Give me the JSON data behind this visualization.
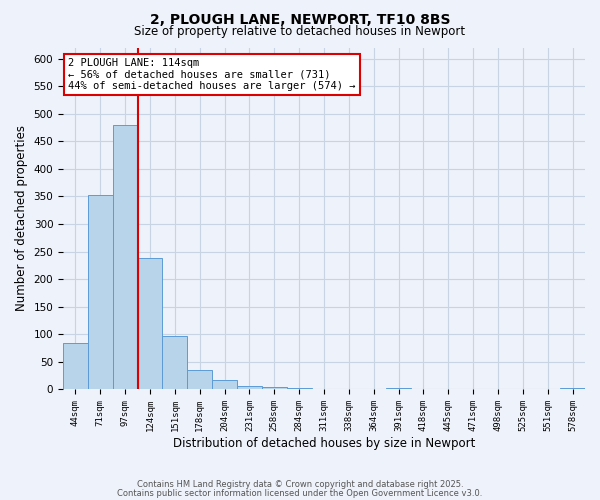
{
  "title": "2, PLOUGH LANE, NEWPORT, TF10 8BS",
  "subtitle": "Size of property relative to detached houses in Newport",
  "xlabel": "Distribution of detached houses by size in Newport",
  "ylabel": "Number of detached properties",
  "bar_labels": [
    "44sqm",
    "71sqm",
    "97sqm",
    "124sqm",
    "151sqm",
    "178sqm",
    "204sqm",
    "231sqm",
    "258sqm",
    "284sqm",
    "311sqm",
    "338sqm",
    "364sqm",
    "391sqm",
    "418sqm",
    "445sqm",
    "471sqm",
    "498sqm",
    "525sqm",
    "551sqm",
    "578sqm"
  ],
  "bar_values": [
    85,
    352,
    480,
    238,
    97,
    35,
    18,
    7,
    5,
    3,
    0,
    0,
    0,
    2,
    0,
    0,
    0,
    0,
    0,
    0,
    2
  ],
  "bar_color": "#b8d4eb",
  "bar_edge_color": "#5b9bd5",
  "bg_color": "#eef2fa",
  "grid_color": "#c8d4e4",
  "vline_color": "#dd0000",
  "annotation_text": "2 PLOUGH LANE: 114sqm\n← 56% of detached houses are smaller (731)\n44% of semi-detached houses are larger (574) →",
  "annotation_box_color": "#ffffff",
  "annotation_box_edge": "#dd0000",
  "ylim": [
    0,
    620
  ],
  "yticks": [
    0,
    50,
    100,
    150,
    200,
    250,
    300,
    350,
    400,
    450,
    500,
    550,
    600
  ],
  "footer_line1": "Contains HM Land Registry data © Crown copyright and database right 2025.",
  "footer_line2": "Contains public sector information licensed under the Open Government Licence v3.0.",
  "vline_pos": 2.5
}
